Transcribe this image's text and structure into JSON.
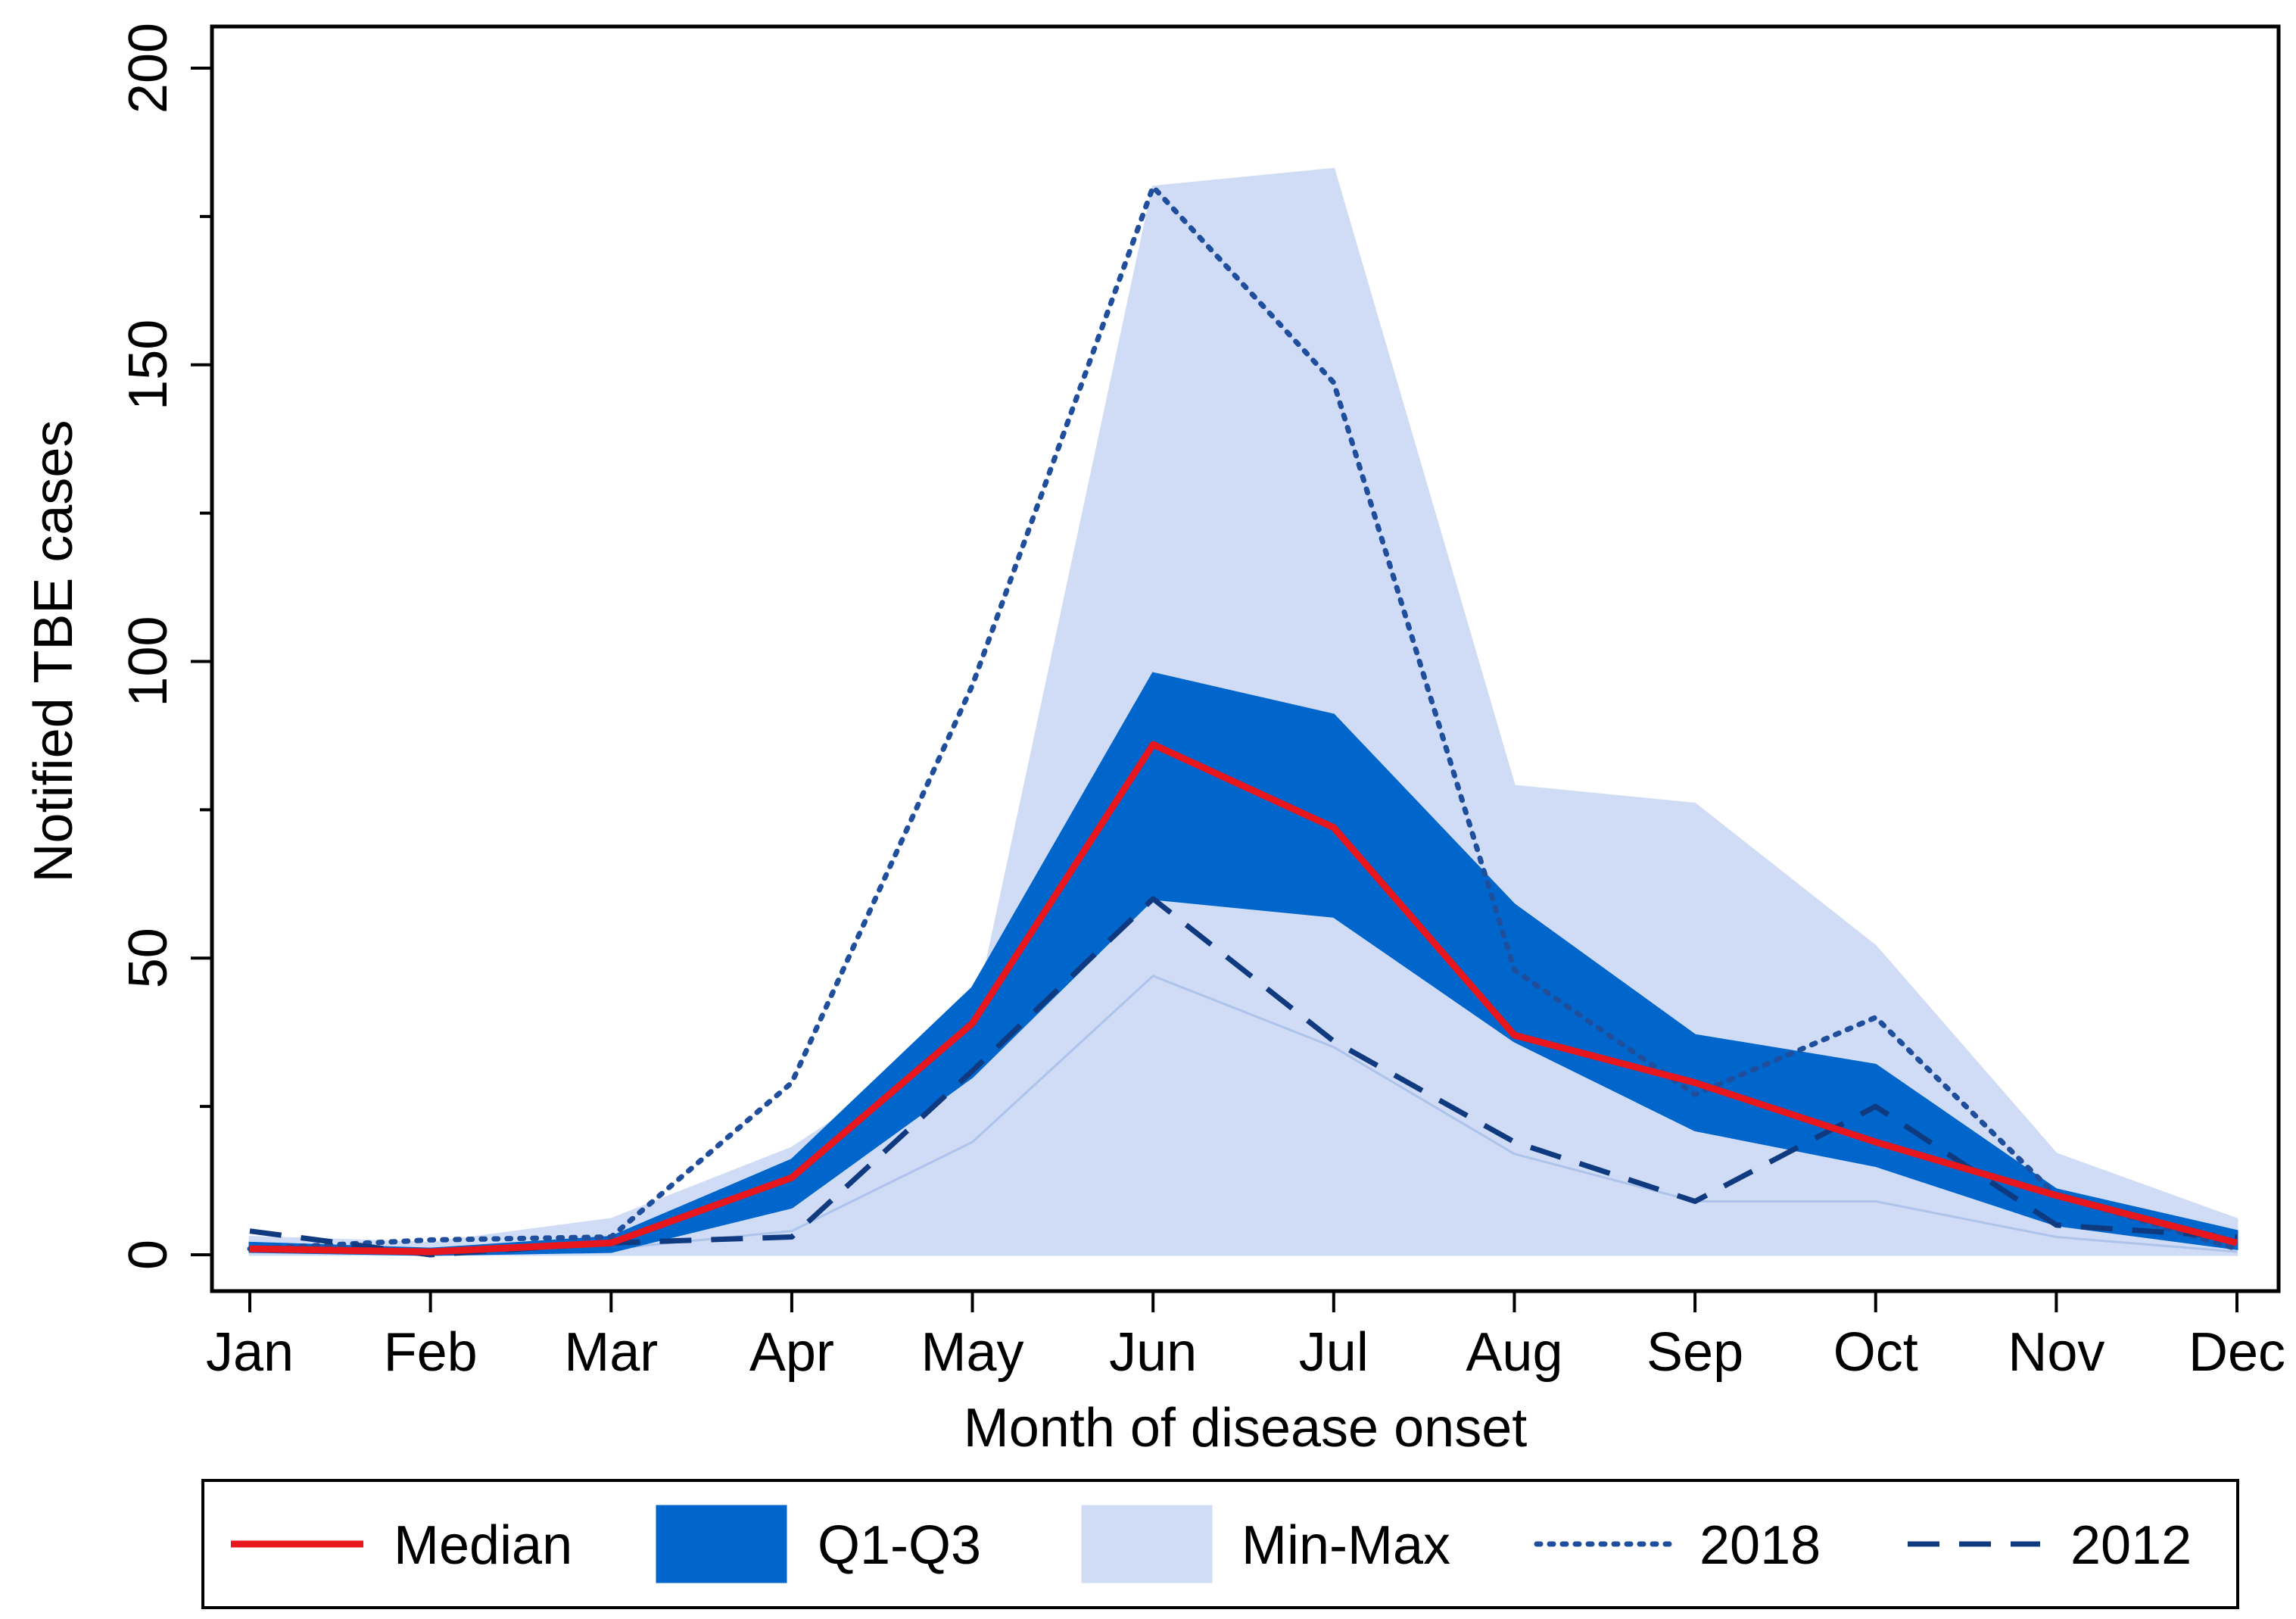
{
  "chart_data": {
    "type": "area",
    "xlabel": "Month of disease onset",
    "ylabel": "Notified TBE cases",
    "categories": [
      "Jan",
      "Feb",
      "Mar",
      "Apr",
      "May",
      "Jun",
      "Jul",
      "Aug",
      "Sep",
      "Oct",
      "Nov",
      "Dec"
    ],
    "ylim": [
      0,
      200
    ],
    "yticks": [
      "0",
      "50",
      "100",
      "150",
      "200"
    ],
    "grid": false,
    "legend_position": "bottom",
    "series": [
      {
        "name": "Min-Max",
        "kind": "band",
        "color": "#d0dcf5",
        "lower": [
          0,
          0,
          0,
          0,
          0,
          0,
          0,
          0,
          0,
          0,
          0,
          0
        ],
        "upper": [
          3,
          2,
          6,
          18,
          38,
          180,
          183,
          79,
          76,
          52,
          17,
          6
        ],
        "lower_outline": [
          0.5,
          0,
          1,
          4,
          19,
          47,
          35,
          17,
          9,
          9,
          3,
          0.5
        ]
      },
      {
        "name": "Q1-Q3",
        "kind": "band",
        "color": "#0066cc",
        "lower": [
          0.5,
          0,
          0.5,
          8,
          30,
          60,
          57,
          36,
          21,
          15,
          5,
          1
        ],
        "upper": [
          2,
          1,
          3,
          16,
          45,
          98,
          91,
          59,
          37,
          32,
          11,
          4
        ]
      },
      {
        "name": "Median",
        "kind": "line",
        "style": "solid",
        "color": "#e8161d",
        "values": [
          1,
          0.5,
          2,
          13,
          39,
          86,
          72,
          37,
          29,
          19,
          10,
          2
        ]
      },
      {
        "name": "2018",
        "kind": "line",
        "style": "dotted",
        "color": "#1f4e9c",
        "values": [
          1,
          2.5,
          3,
          29,
          96,
          180,
          147,
          48,
          27,
          40,
          10,
          1
        ]
      },
      {
        "name": "2012",
        "kind": "line",
        "style": "dashed",
        "color": "#0f3a80",
        "values": [
          4,
          0,
          2,
          3,
          31,
          60,
          36,
          19,
          9,
          25,
          5,
          3
        ]
      }
    ]
  },
  "legend": {
    "items": [
      {
        "label": "Median",
        "symbol": "line-solid",
        "color": "#e8161d"
      },
      {
        "label": "Q1-Q3",
        "symbol": "box",
        "color": "#0066cc"
      },
      {
        "label": "Min-Max",
        "symbol": "box",
        "color": "#d0dcf5"
      },
      {
        "label": "2018",
        "symbol": "line-dotted",
        "color": "#1f4e9c"
      },
      {
        "label": "2012",
        "symbol": "line-dashed",
        "color": "#0f3a80"
      }
    ]
  }
}
